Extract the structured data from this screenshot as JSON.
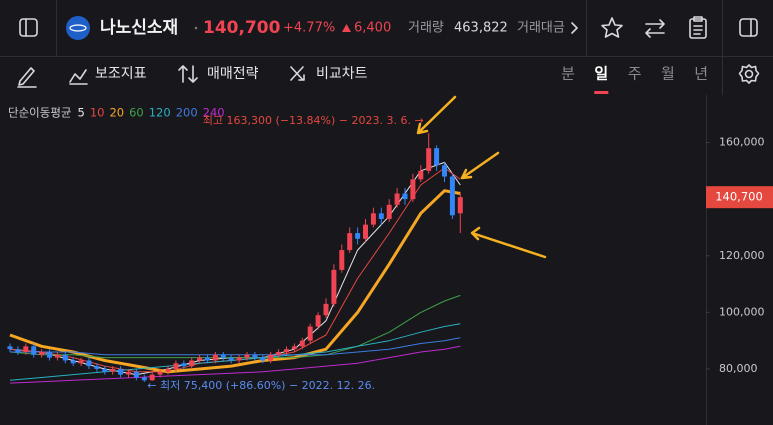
{
  "header": {
    "name": "나노신소재",
    "price": "140,700",
    "change_rate": "+4.77%",
    "change": "6,400",
    "volume_label": "거래량",
    "volume": "463,822",
    "amount_label": "거래대금"
  },
  "toolbar": {
    "tools": [
      "보조지표",
      "매매전략",
      "비교차트"
    ],
    "periods": [
      "분",
      "일",
      "주",
      "월",
      "년"
    ],
    "selected_period": 1
  },
  "chart_data": {
    "type": "candlestick",
    "legend_title": "단순이동평균",
    "up_color": "#f04452",
    "down_color": "#3485fa",
    "open": [
      88000,
      87000,
      86000,
      88000,
      85000,
      86000,
      84000,
      85000,
      83000,
      82000,
      83000,
      81000,
      80000,
      79000,
      80000,
      78000,
      79000,
      77000,
      76000,
      78000,
      79000,
      80000,
      82000,
      81000,
      83000,
      84000,
      83000,
      85000,
      84000,
      83000,
      84000,
      85000,
      84000,
      83000,
      85000,
      86000,
      87000,
      88000,
      90000,
      95000,
      99000,
      103000,
      115000,
      122000,
      128000,
      126000,
      131000,
      135000,
      133000,
      138000,
      142000,
      140000,
      147000,
      150000,
      158000,
      152000,
      148000,
      135000
    ],
    "high": [
      89000,
      88000,
      89000,
      89000,
      87000,
      87000,
      86000,
      86000,
      84000,
      84000,
      84000,
      82000,
      81000,
      81000,
      81000,
      80000,
      80000,
      78000,
      79000,
      80000,
      81000,
      83000,
      83000,
      84000,
      85000,
      85000,
      86000,
      86000,
      85000,
      85000,
      86000,
      86000,
      85000,
      86000,
      87000,
      88000,
      89000,
      91000,
      96000,
      100000,
      105000,
      117000,
      124000,
      130000,
      130000,
      133000,
      137000,
      137000,
      140000,
      144000,
      144000,
      149000,
      152000,
      163300,
      159000,
      153000,
      149000,
      142000
    ],
    "low": [
      86000,
      85000,
      85000,
      84000,
      84000,
      83000,
      83000,
      82000,
      81000,
      81000,
      80000,
      79000,
      78000,
      78000,
      77000,
      77000,
      76000,
      75400,
      75800,
      77000,
      78000,
      79000,
      80000,
      80000,
      82000,
      82000,
      82000,
      83000,
      82000,
      82000,
      83000,
      83000,
      82000,
      82000,
      84000,
      85000,
      86000,
      87000,
      89000,
      94000,
      98000,
      102000,
      114000,
      121000,
      124000,
      125000,
      130000,
      131000,
      132000,
      137000,
      138000,
      139000,
      146000,
      149000,
      150000,
      146000,
      133000,
      128000
    ],
    "close": [
      87000,
      86000,
      88000,
      85000,
      86000,
      84000,
      85000,
      83000,
      82000,
      83000,
      81000,
      80000,
      79000,
      80000,
      78000,
      79000,
      77000,
      76000,
      78000,
      79000,
      80000,
      82000,
      81000,
      83000,
      84000,
      83000,
      85000,
      84000,
      83000,
      84000,
      85000,
      84000,
      83000,
      85000,
      86000,
      87000,
      88000,
      90000,
      95000,
      99000,
      103000,
      115000,
      122000,
      128000,
      126000,
      131000,
      135000,
      133000,
      138000,
      142000,
      140000,
      147000,
      150000,
      158000,
      152000,
      148000,
      134300,
      140700
    ],
    "ma_x": [
      0,
      4,
      8,
      12,
      16,
      20,
      24,
      28,
      32,
      36,
      40,
      44,
      48,
      52,
      55,
      57
    ],
    "series": [
      {
        "name": "5",
        "color": "#e6e6ea",
        "width": 1,
        "values": [
          87000,
          86000,
          83000,
          80000,
          78000,
          80000,
          83000,
          84000,
          84000,
          87000,
          97000,
          122000,
          134000,
          150000,
          153000,
          145000
        ]
      },
      {
        "name": "10",
        "color": "#e5483f",
        "width": 1,
        "values": [
          87000,
          86000,
          84000,
          81000,
          79000,
          79000,
          82000,
          83000,
          84000,
          86000,
          92000,
          112000,
          128000,
          145000,
          151000,
          147000
        ]
      },
      {
        "name": "20",
        "color": "#f5a623",
        "width": 3,
        "values": [
          92000,
          88000,
          86000,
          83000,
          81000,
          79000,
          80000,
          81000,
          83000,
          84000,
          87000,
          100000,
          117000,
          135000,
          143000,
          142000
        ]
      },
      {
        "name": "60",
        "color": "#3fa14a",
        "width": 1,
        "values": [
          86000,
          85000,
          85000,
          84000,
          84000,
          84000,
          84000,
          84000,
          84000,
          84000,
          85000,
          88000,
          93000,
          100000,
          104000,
          106000
        ]
      },
      {
        "name": "120",
        "color": "#2ab0c0",
        "width": 1,
        "values": [
          76000,
          77000,
          78000,
          79000,
          80000,
          81000,
          82000,
          83000,
          84000,
          85000,
          86000,
          88000,
          90000,
          93000,
          95000,
          96000
        ]
      },
      {
        "name": "200",
        "color": "#3d7be0",
        "width": 1,
        "values": [
          86000,
          86000,
          86000,
          85000,
          85000,
          85000,
          85000,
          85000,
          85000,
          85000,
          85000,
          86000,
          87000,
          89000,
          90000,
          91000
        ]
      },
      {
        "name": "240",
        "color": "#c02ad0",
        "width": 1,
        "values": [
          75000,
          75500,
          76000,
          76500,
          77000,
          77500,
          78000,
          78500,
          79000,
          80000,
          81000,
          82000,
          84000,
          86000,
          87000,
          88000
        ]
      }
    ],
    "annotations": [
      {
        "text": "최고 163,300 (−13.84%) − 2023. 3. 6. →",
        "color": "#e5483f"
      },
      {
        "text": "← 최저 75,400 (+86.60%) − 2022. 12. 26.",
        "color": "#5a8dee"
      }
    ],
    "ylim": [
      60200,
      176800
    ],
    "yticks": [
      {
        "value": 80000,
        "label": "80,000"
      },
      {
        "value": 100000,
        "label": "100,000"
      },
      {
        "value": 120000,
        "label": "120,000"
      },
      {
        "value": 160000,
        "label": "160,000"
      }
    ]
  }
}
